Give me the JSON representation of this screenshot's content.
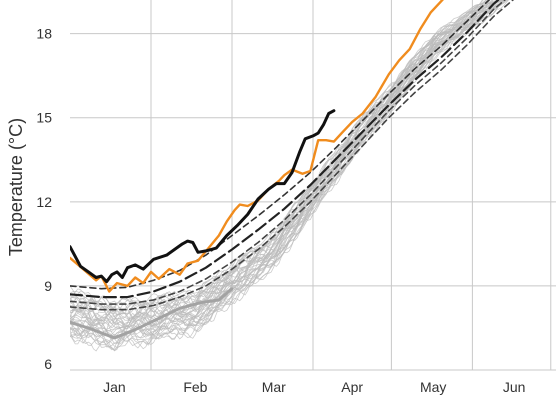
{
  "chart_data": {
    "type": "line",
    "ylabel": "Temperature (°C)",
    "xlabel": "",
    "title": "",
    "x_unit": "day of year",
    "xlim": [
      -2,
      184
    ],
    "ylim": [
      6,
      19.2
    ],
    "yticks": [
      6,
      9,
      12,
      15,
      18
    ],
    "xticks": [
      {
        "label": "Jan",
        "value": 15
      },
      {
        "label": "Feb",
        "value": 46
      },
      {
        "label": "Mar",
        "value": 76
      },
      {
        "label": "Apr",
        "value": 106
      },
      {
        "label": "May",
        "value": 137
      },
      {
        "label": "Jun",
        "value": 168
      }
    ],
    "month_gridlines": [
      29,
      60,
      91,
      121,
      152,
      182
    ],
    "grid": true,
    "background_ensemble": {
      "color": "#bbbbbb",
      "member_count": 40,
      "points": [
        [
          -2,
          7.9
        ],
        [
          15,
          7.5
        ],
        [
          46,
          8.0
        ],
        [
          76,
          10.2
        ],
        [
          106,
          14.0
        ],
        [
          137,
          17.5
        ],
        [
          168,
          19.6
        ],
        [
          184,
          20.4
        ]
      ],
      "spread_low": -0.7,
      "spread_high": 0.9
    },
    "series": [
      {
        "style": "thick-gray",
        "color": "#a3a3a3",
        "points": [
          [
            -2,
            7.7
          ],
          [
            5,
            7.5
          ],
          [
            15,
            7.15
          ],
          [
            22,
            7.4
          ],
          [
            30,
            7.75
          ],
          [
            40,
            8.2
          ],
          [
            48,
            8.4
          ],
          [
            55,
            8.5
          ],
          [
            60,
            8.9
          ]
        ]
      },
      {
        "style": "percentile-dashed",
        "color": "#444444",
        "points": [
          [
            -2,
            8.25
          ],
          [
            10,
            8.15
          ],
          [
            20,
            8.15
          ],
          [
            30,
            8.3
          ],
          [
            40,
            8.6
          ],
          [
            50,
            9.0
          ],
          [
            60,
            9.6
          ],
          [
            70,
            10.3
          ],
          [
            80,
            11.1
          ],
          [
            90,
            12.0
          ],
          [
            100,
            13.0
          ],
          [
            110,
            14.0
          ],
          [
            120,
            15.0
          ],
          [
            130,
            15.9
          ],
          [
            140,
            16.7
          ],
          [
            150,
            17.6
          ],
          [
            160,
            18.6
          ],
          [
            170,
            19.4
          ],
          [
            184,
            20.1
          ]
        ]
      },
      {
        "style": "percentile-dashed",
        "color": "#444444",
        "points": [
          [
            -2,
            8.45
          ],
          [
            10,
            8.35
          ],
          [
            20,
            8.35
          ],
          [
            30,
            8.5
          ],
          [
            40,
            8.8
          ],
          [
            50,
            9.25
          ],
          [
            60,
            9.85
          ],
          [
            70,
            10.55
          ],
          [
            80,
            11.35
          ],
          [
            90,
            12.25
          ],
          [
            100,
            13.25
          ],
          [
            110,
            14.25
          ],
          [
            120,
            15.25
          ],
          [
            130,
            16.15
          ],
          [
            140,
            16.95
          ],
          [
            150,
            17.85
          ],
          [
            160,
            18.85
          ],
          [
            170,
            19.65
          ],
          [
            184,
            20.35
          ]
        ]
      },
      {
        "style": "median-dashed",
        "color": "#222222",
        "points": [
          [
            -2,
            8.7
          ],
          [
            10,
            8.6
          ],
          [
            20,
            8.6
          ],
          [
            30,
            8.8
          ],
          [
            40,
            9.15
          ],
          [
            50,
            9.65
          ],
          [
            60,
            10.3
          ],
          [
            70,
            11.0
          ],
          [
            80,
            11.75
          ],
          [
            90,
            12.6
          ],
          [
            100,
            13.55
          ],
          [
            110,
            14.5
          ],
          [
            120,
            15.45
          ],
          [
            130,
            16.35
          ],
          [
            140,
            17.15
          ],
          [
            150,
            18.05
          ],
          [
            160,
            19.05
          ],
          [
            170,
            19.85
          ],
          [
            184,
            20.5
          ]
        ]
      },
      {
        "style": "percentile-dashed",
        "color": "#333333",
        "points": [
          [
            -2,
            9.0
          ],
          [
            10,
            8.9
          ],
          [
            20,
            8.95
          ],
          [
            30,
            9.2
          ],
          [
            40,
            9.55
          ],
          [
            50,
            10.1
          ],
          [
            60,
            10.8
          ],
          [
            70,
            11.5
          ],
          [
            80,
            12.25
          ],
          [
            90,
            13.05
          ],
          [
            100,
            13.95
          ],
          [
            110,
            14.9
          ],
          [
            120,
            15.85
          ],
          [
            130,
            16.75
          ],
          [
            140,
            17.55
          ],
          [
            150,
            18.45
          ],
          [
            160,
            19.35
          ],
          [
            170,
            20.0
          ],
          [
            184,
            20.6
          ]
        ]
      },
      {
        "style": "orange",
        "color": "#f08c1e",
        "points": [
          [
            -2,
            10.0
          ],
          [
            3,
            9.6
          ],
          [
            8,
            9.2
          ],
          [
            10,
            9.35
          ],
          [
            13,
            8.8
          ],
          [
            16,
            9.1
          ],
          [
            20,
            9.0
          ],
          [
            23,
            9.3
          ],
          [
            26,
            9.1
          ],
          [
            29,
            9.5
          ],
          [
            32,
            9.25
          ],
          [
            36,
            9.6
          ],
          [
            40,
            9.4
          ],
          [
            43,
            9.8
          ],
          [
            47,
            9.9
          ],
          [
            51,
            10.35
          ],
          [
            55,
            10.8
          ],
          [
            58,
            11.3
          ],
          [
            61,
            11.7
          ],
          [
            63,
            11.9
          ],
          [
            66,
            11.85
          ],
          [
            70,
            12.05
          ],
          [
            74,
            12.45
          ],
          [
            78,
            12.75
          ],
          [
            80,
            12.95
          ],
          [
            83,
            13.15
          ],
          [
            87,
            13.0
          ],
          [
            90,
            13.1
          ],
          [
            93,
            14.2
          ],
          [
            96,
            14.2
          ],
          [
            99,
            14.15
          ],
          [
            102,
            14.45
          ],
          [
            106,
            14.85
          ],
          [
            110,
            15.15
          ],
          [
            115,
            15.75
          ],
          [
            120,
            16.55
          ],
          [
            124,
            17.05
          ],
          [
            128,
            17.45
          ],
          [
            132,
            18.15
          ],
          [
            136,
            18.75
          ],
          [
            140,
            19.15
          ],
          [
            144,
            19.55
          ],
          [
            148,
            19.95
          ],
          [
            152,
            20.25
          ]
        ]
      },
      {
        "style": "black",
        "color": "#111111",
        "points": [
          [
            -2,
            10.4
          ],
          [
            2,
            9.7
          ],
          [
            5,
            9.5
          ],
          [
            8,
            9.3
          ],
          [
            10,
            9.35
          ],
          [
            12,
            9.15
          ],
          [
            14,
            9.4
          ],
          [
            16,
            9.5
          ],
          [
            18,
            9.3
          ],
          [
            20,
            9.65
          ],
          [
            23,
            9.75
          ],
          [
            26,
            9.6
          ],
          [
            30,
            9.95
          ],
          [
            35,
            10.1
          ],
          [
            38,
            10.3
          ],
          [
            41,
            10.5
          ],
          [
            43,
            10.6
          ],
          [
            45,
            10.55
          ],
          [
            47,
            10.2
          ],
          [
            50,
            10.25
          ],
          [
            54,
            10.35
          ],
          [
            58,
            10.8
          ],
          [
            62,
            11.15
          ],
          [
            66,
            11.55
          ],
          [
            70,
            12.1
          ],
          [
            74,
            12.45
          ],
          [
            77,
            12.65
          ],
          [
            80,
            12.65
          ],
          [
            83,
            13.05
          ],
          [
            86,
            13.8
          ],
          [
            88,
            14.25
          ],
          [
            91,
            14.35
          ],
          [
            93,
            14.45
          ],
          [
            95,
            14.75
          ],
          [
            97,
            15.15
          ],
          [
            99,
            15.25
          ]
        ]
      }
    ]
  }
}
